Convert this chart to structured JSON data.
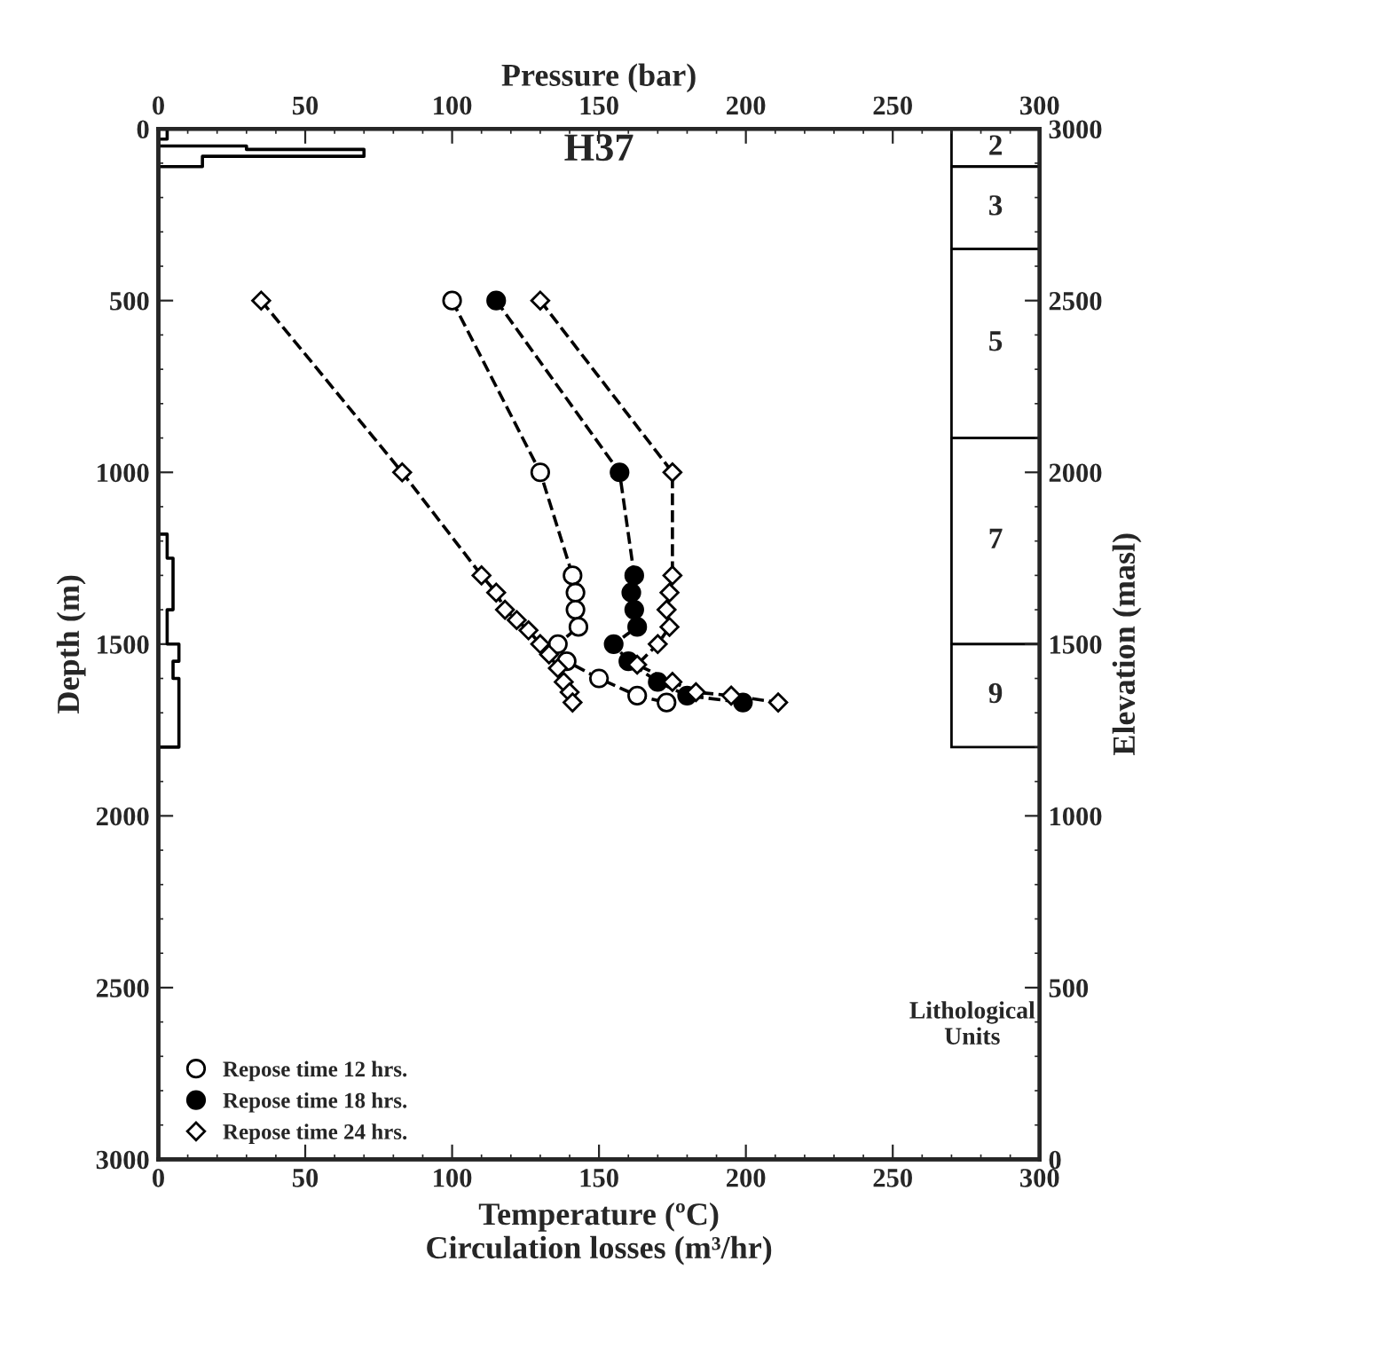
{
  "chart_data": {
    "type": "line",
    "title": "H37",
    "xlabel": "Temperature (ºC)\nCirculation losses (m³/hr)",
    "ylabel": "Depth (m)",
    "y2label": "Elevation (masl)",
    "x2label": "Pressure (bar)",
    "xlim": [
      0,
      300
    ],
    "xticks": [
      0,
      50,
      100,
      150,
      200,
      250,
      300
    ],
    "x2lim": [
      0,
      300
    ],
    "x2ticks": [
      0,
      50,
      100,
      150,
      200,
      250,
      300
    ],
    "ylim": [
      3000,
      0
    ],
    "yticks": [
      0,
      500,
      1000,
      1500,
      2000,
      2500,
      3000
    ],
    "y2lim": [
      0,
      3000
    ],
    "y2ticks": [
      0,
      500,
      1000,
      1500,
      2000,
      2500,
      3000
    ],
    "line_style": "dashed",
    "grid": false,
    "legend": "bottom left",
    "series": [
      {
        "name": "Repose time 12 hrs.",
        "color": "#000000",
        "marker": "circle",
        "x": [
          100,
          130,
          141,
          142,
          142,
          143,
          136,
          139,
          150,
          163,
          173
        ],
        "values": [
          500,
          1000,
          1300,
          1350,
          1400,
          1450,
          1500,
          1550,
          1600,
          1650,
          1670
        ]
      },
      {
        "name": "Repose time 18 hrs.",
        "color": "#000000",
        "marker": "circle",
        "x": [
          115,
          157,
          162,
          161,
          162,
          163,
          155,
          160,
          170,
          180,
          199
        ],
        "values": [
          500,
          1000,
          1300,
          1350,
          1400,
          1450,
          1500,
          1550,
          1610,
          1650,
          1670
        ]
      },
      {
        "name": "Repose time 24 hrs.",
        "color": "#000000",
        "marker": "diamond",
        "x": [
          130,
          175,
          175,
          174,
          173,
          174,
          170,
          163,
          175,
          183,
          195,
          211
        ],
        "values": [
          500,
          1000,
          1300,
          1350,
          1400,
          1450,
          1500,
          1560,
          1610,
          1640,
          1650,
          1670
        ]
      },
      {
        "color": "#000000",
        "marker": "diamond",
        "x": [
          35,
          83,
          110,
          115,
          118,
          122,
          126,
          130,
          133,
          136,
          138,
          140,
          141
        ],
        "values": [
          500,
          1000,
          1300,
          1350,
          1400,
          1430,
          1460,
          1500,
          1530,
          1570,
          1610,
          1640,
          1670
        ]
      },
      {
        "color": "#000000",
        "marker": "none",
        "line_style": "solid",
        "x": [
          0,
          3,
          3,
          0,
          0,
          30,
          30,
          70,
          70,
          15,
          15,
          0,
          0,
          3,
          3,
          5,
          5,
          3,
          3,
          7,
          7,
          5,
          5,
          7,
          7,
          0
        ],
        "values": [
          0,
          0,
          30,
          30,
          50,
          50,
          60,
          60,
          80,
          80,
          110,
          110,
          1180,
          1180,
          1250,
          1250,
          1400,
          1400,
          1500,
          1500,
          1550,
          1550,
          1600,
          1600,
          1800,
          1800
        ]
      }
    ],
    "bands": [
      {
        "axis": "y",
        "from": 0,
        "to": 110,
        "label": "2"
      },
      {
        "axis": "y",
        "from": 110,
        "to": 350,
        "label": "3"
      },
      {
        "axis": "y",
        "from": 350,
        "to": 900,
        "label": "5"
      },
      {
        "axis": "y",
        "from": 900,
        "to": 1500,
        "label": "7"
      },
      {
        "axis": "y",
        "from": 1500,
        "to": 1800,
        "label": "9"
      }
    ],
    "annotations": [
      "Lithological\nUnits"
    ]
  }
}
